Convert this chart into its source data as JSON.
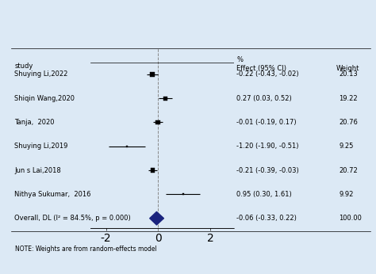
{
  "studies": [
    {
      "name": "Shuying Li,2022",
      "effect": -0.22,
      "ci_low": -0.43,
      "ci_high": -0.02,
      "weight": 20.13,
      "effect_str": "-0.22 (-0.43, -0.02)",
      "weight_str": "20.13"
    },
    {
      "name": "Shiqin Wang,2020",
      "effect": 0.27,
      "ci_low": 0.03,
      "ci_high": 0.52,
      "weight": 19.22,
      "effect_str": "0.27 (0.03, 0.52)",
      "weight_str": "19.22"
    },
    {
      "name": "Tanja,  2020",
      "effect": -0.01,
      "ci_low": -0.19,
      "ci_high": 0.17,
      "weight": 20.76,
      "effect_str": "-0.01 (-0.19, 0.17)",
      "weight_str": "20.76"
    },
    {
      "name": "Shuying Li,2019",
      "effect": -1.2,
      "ci_low": -1.9,
      "ci_high": -0.51,
      "weight": 9.25,
      "effect_str": "-1.20 (-1.90, -0.51)",
      "weight_str": "9.25"
    },
    {
      "name": "Jun s Lai,2018",
      "effect": -0.21,
      "ci_low": -0.39,
      "ci_high": -0.03,
      "weight": 20.72,
      "effect_str": "-0.21 (-0.39, -0.03)",
      "weight_str": "20.72"
    },
    {
      "name": "Nithya Sukumar,  2016",
      "effect": 0.95,
      "ci_low": 0.3,
      "ci_high": 1.61,
      "weight": 9.92,
      "effect_str": "0.95 (0.30, 1.61)",
      "weight_str": "9.92"
    }
  ],
  "overall": {
    "name": "Overall, DL (I² = 84.5%, p = 0.000)",
    "effect": -0.06,
    "ci_low": -0.33,
    "ci_high": 0.22,
    "effect_str": "-0.06 (-0.33, 0.22)",
    "weight_str": "100.00"
  },
  "xlim": [
    -2.6,
    2.9
  ],
  "xticks": [
    -2,
    0,
    2
  ],
  "note": "NOTE: Weights are from random-effects model",
  "bg_color": "#dce9f5",
  "plot_bg": "#ffffff",
  "diamond_color": "#1a237e",
  "ci_color": "#000000",
  "dashed_line_color": "#888888",
  "header_effect": "Effect (95% CI)",
  "header_weight": "Weight",
  "header_pct": "%",
  "study_label": "study"
}
